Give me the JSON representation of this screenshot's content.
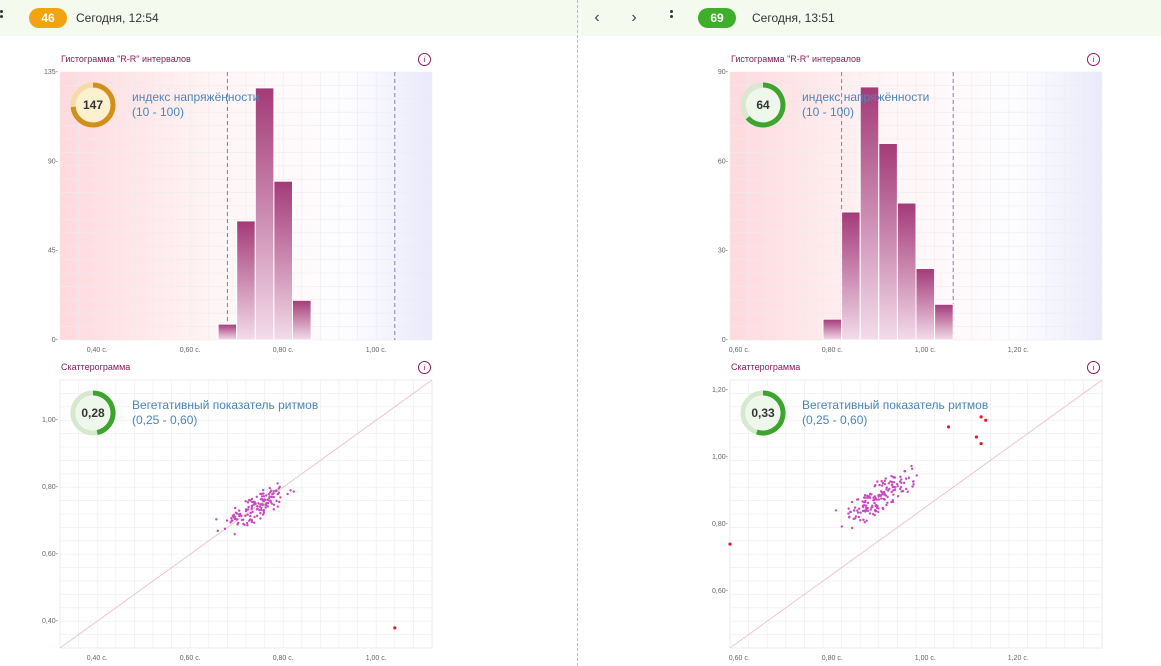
{
  "colors": {
    "orange_badge": "#f2a40e",
    "green_badge": "#3fae2a",
    "accent": "#8b1c5c",
    "metric_text": "#4c86b5"
  },
  "left": {
    "header": {
      "badge": "46",
      "time": "Сегодня, 12:54"
    },
    "histogram": {
      "title": "Гистограмма \"R-R\" интервалов",
      "gauge_value": "147",
      "metric_label": "индекс напряжённости",
      "metric_range": "(10 - 100)",
      "y_ticks": [
        "135-",
        "90-",
        "45-",
        "0-"
      ],
      "x_ticks": [
        "0,40 с.",
        "0,60 с.",
        "0,80 с.",
        "1,00 с."
      ]
    },
    "scatter": {
      "title": "Скаттерограмма",
      "gauge_value": "0,28",
      "metric_label": "Вегетативный показатель ритмов",
      "metric_range": "(0,25 - 0,60)",
      "y_ticks": [
        "1,00-",
        "0,80-",
        "0,60-",
        "0,40-"
      ],
      "x_ticks": [
        "0,40 с.",
        "0,60 с.",
        "0,80 с.",
        "1,00 с."
      ]
    }
  },
  "right": {
    "header": {
      "badge": "69",
      "time": "Сегодня, 13:51",
      "prev_icon": "chevron-left-icon",
      "next_icon": "chevron-right-icon"
    },
    "histogram": {
      "title": "Гистограмма \"R-R\" интервалов",
      "gauge_value": "64",
      "metric_label": "индекс напряжённости",
      "metric_range": "(10 - 100)",
      "y_ticks": [
        "90-",
        "60-",
        "30-",
        "0-"
      ],
      "x_ticks": [
        "0,60 с.",
        "0,80 с.",
        "1,00 с.",
        "1,20 с."
      ]
    },
    "scatter": {
      "title": "Скаттерограмма",
      "gauge_value": "0,33",
      "metric_label": "Вегетативный показатель ритмов",
      "metric_range": "(0,25 - 0,60)",
      "y_ticks": [
        "1,20-",
        "1,00-",
        "0,80-",
        "0,60-"
      ],
      "x_ticks": [
        "0,60 с.",
        "0,80 с.",
        "1,00 с.",
        "1,20 с."
      ]
    }
  },
  "chart_data": [
    {
      "id": "left-histogram",
      "type": "bar",
      "x_unit": "s",
      "bin_width": 0.04,
      "bin_starts": [
        0.66,
        0.7,
        0.74,
        0.78,
        0.82
      ],
      "values": [
        8,
        60,
        127,
        80,
        20
      ],
      "xlim": [
        0.32,
        1.12
      ],
      "ylim": [
        0,
        135
      ],
      "markers": [
        0.68,
        1.04
      ],
      "gauge": {
        "value": 147,
        "max": 200,
        "color": "#d1901a"
      }
    },
    {
      "id": "left-scatter",
      "type": "scatter",
      "x_unit": "s",
      "y_unit": "s",
      "xlim": [
        0.32,
        1.12
      ],
      "ylim": [
        0.32,
        1.12
      ],
      "center": [
        0.74,
        0.74
      ],
      "spread": 0.035,
      "count": 140,
      "outliers": [
        [
          1.04,
          0.38
        ]
      ],
      "gauge": {
        "value": 0.28,
        "max": 0.6,
        "color": "#3da52d"
      }
    },
    {
      "id": "right-histogram",
      "type": "bar",
      "x_unit": "s",
      "bin_width": 0.04,
      "bin_starts": [
        0.78,
        0.82,
        0.86,
        0.9,
        0.94,
        0.98,
        1.02
      ],
      "values": [
        7,
        43,
        85,
        66,
        46,
        24,
        12
      ],
      "xlim": [
        0.58,
        1.38
      ],
      "ylim": [
        0,
        90
      ],
      "markers": [
        0.82,
        1.06
      ],
      "gauge": {
        "value": 64,
        "max": 100,
        "color": "#3da52d"
      }
    },
    {
      "id": "right-scatter",
      "type": "scatter",
      "x_unit": "s",
      "y_unit": "s",
      "xlim": [
        0.58,
        1.38
      ],
      "ylim": [
        0.43,
        1.23
      ],
      "center": [
        0.9,
        0.88
      ],
      "spread": 0.04,
      "count": 160,
      "outliers": [
        [
          0.58,
          0.74
        ],
        [
          1.05,
          1.09
        ],
        [
          1.12,
          1.12
        ],
        [
          1.13,
          1.11
        ],
        [
          1.11,
          1.06
        ],
        [
          1.12,
          1.04
        ]
      ],
      "gauge": {
        "value": 0.33,
        "max": 0.6,
        "color": "#3da52d"
      }
    }
  ]
}
